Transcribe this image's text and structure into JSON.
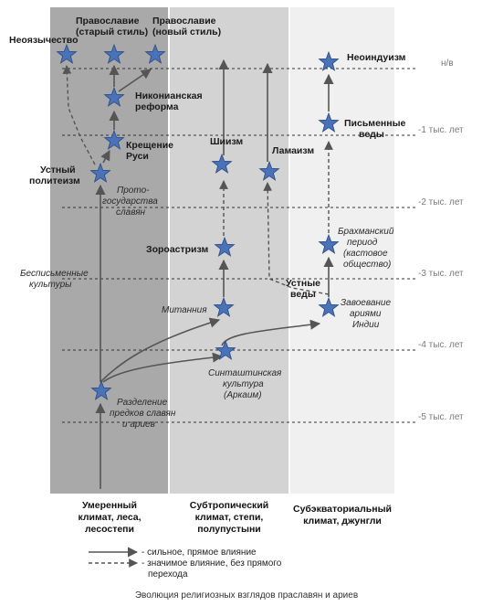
{
  "zones": [
    {
      "label_lines": [
        "Умеренный",
        "климат, леса,",
        "лесостепи"
      ],
      "color": "#a9a9a9"
    },
    {
      "label_lines": [
        "Субтропический",
        "климат, степи,",
        "полупустыни"
      ],
      "color": "#d3d3d3"
    },
    {
      "label_lines": [
        "Субэкваториальный",
        "климат, джунгли"
      ],
      "color": "#efefef"
    }
  ],
  "eras": [
    "н/в",
    "-1 тыс. лет",
    "-2 тыс. лет",
    "-3 тыс. лет",
    "-4 тыс. лет",
    "-5 тыс. лет"
  ],
  "nodes": {
    "neopaganism": {
      "lines": [
        "Неоязычество"
      ]
    },
    "orthodox_old": {
      "lines": [
        "Православие",
        "(старый стиль)"
      ]
    },
    "orthodox_new": {
      "lines": [
        "Православие",
        "(новый стиль)"
      ]
    },
    "nikon": {
      "lines": [
        "Никонианская",
        "реформа"
      ]
    },
    "baptism": {
      "lines": [
        "Крещение",
        "Руси"
      ]
    },
    "oral_polytheism": {
      "lines": [
        "Устный",
        "политеизм"
      ]
    },
    "shiism": {
      "lines": [
        "Шиизм"
      ]
    },
    "lamaism": {
      "lines": [
        "Ламаизм"
      ]
    },
    "neohinduism": {
      "lines": [
        "Неоиндуизм"
      ]
    },
    "written_vedas": {
      "lines": [
        "Письменные",
        "веды"
      ]
    },
    "brahman": {
      "lines": [
        "Брахманский",
        "период",
        "(кастовое",
        "общество)"
      ]
    },
    "zoroastrism": {
      "lines": [
        "Зороастризм"
      ]
    },
    "oral_vedas": {
      "lines": [
        "Устные",
        "веды"
      ]
    },
    "mitanni": {
      "lines": [
        "Митанния"
      ]
    },
    "conquest": {
      "lines": [
        "Завоевание",
        "ариями",
        "Индии"
      ]
    },
    "sintashta": {
      "lines": [
        "Синташтинская",
        "культура",
        "(Аркаим)"
      ]
    },
    "split": {
      "lines": [
        "Разделение",
        "предков славян",
        "и ариев"
      ]
    }
  },
  "notes": {
    "proto_state": [
      "Прото-",
      "государства",
      "славян"
    ],
    "preliterate": [
      "Бесписьменные",
      "культуры"
    ]
  },
  "legend": {
    "solid": "- сильное, прямое влияние",
    "dashed_lines": [
      "- значимое влияние, без прямого",
      "перехода"
    ]
  },
  "caption": "Эволюция религиозных взглядов праславян и ариев",
  "colors": {
    "star": "#4a72b8",
    "star_stroke": "#2b4a80",
    "arrow": "#555555"
  }
}
